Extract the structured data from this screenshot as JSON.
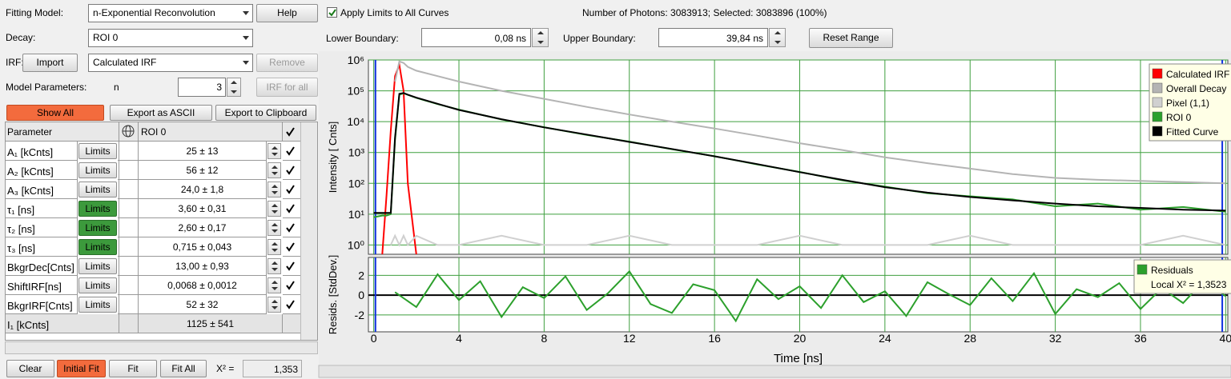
{
  "left_panel": {
    "fitting_model_label": "Fitting Model:",
    "fitting_model": "n-Exponential Reconvolution",
    "help": "Help",
    "decay_label": "Decay:",
    "decay": "ROI 0",
    "irf_label": "IRF:",
    "import": "Import",
    "irf": "Calculated IRF",
    "remove": "Remove",
    "model_params_label": "Model Parameters:",
    "n_label": "n",
    "n_value": "3",
    "irf_for_all": "IRF for all",
    "show_all": "Show All",
    "export_ascii": "Export as ASCII",
    "export_clipboard": "Export to Clipboard"
  },
  "table": {
    "header": [
      "Parameter",
      "ROI 0"
    ],
    "limits": "Limits",
    "rows": [
      {
        "name": "A₁ [kCnts]",
        "value": "25 ± 13",
        "limits_state": "off"
      },
      {
        "name": "A₂ [kCnts]",
        "value": "56 ± 12",
        "limits_state": "off"
      },
      {
        "name": "A₃ [kCnts]",
        "value": "24,0 ± 1,8",
        "limits_state": "off"
      },
      {
        "name": "τ₁ [ns]",
        "value": "3,60 ± 0,31",
        "limits_state": "on"
      },
      {
        "name": "τ₂ [ns]",
        "value": "2,60 ± 0,17",
        "limits_state": "on"
      },
      {
        "name": "τ₃ [ns]",
        "value": "0,715 ± 0,043",
        "limits_state": "on"
      },
      {
        "name": "BkgrDec[Cnts]",
        "value": "13,00 ± 0,93",
        "limits_state": "off"
      },
      {
        "name": "ShiftIRF[ns]",
        "value": "0,0068 ± 0,0012",
        "limits_state": "off"
      },
      {
        "name": "BkgrIRF[Cnts]",
        "value": "52 ± 32",
        "limits_state": "off"
      },
      {
        "name": "I₁ [kCnts]",
        "value": "1125 ± 541",
        "limits_state": "none"
      }
    ]
  },
  "bottom": {
    "clear": "Clear",
    "initial_fit": "Initial Fit",
    "fit": "Fit",
    "fit_all": "Fit All",
    "chi_label": "X² =",
    "chi_value": "1,353"
  },
  "top": {
    "apply_limits": "Apply Limits to All Curves",
    "photons": "Number of Photons: 3083913; Selected: 3083896 (100%)",
    "lower_label": "Lower Boundary:",
    "lower_value": "0,08 ns",
    "upper_label": "Upper Boundary:",
    "upper_value": "39,84 ns",
    "reset": "Reset Range"
  },
  "chart_data": [
    {
      "type": "line",
      "y_label": "Intensity [ Cnts]",
      "log_y": true,
      "ylim": [
        0.5,
        1000000
      ],
      "yticks": [
        {
          "value": 1,
          "label": "10⁰"
        },
        {
          "value": 10,
          "label": "10¹"
        },
        {
          "value": 100,
          "label": "10²"
        },
        {
          "value": 1000,
          "label": "10³"
        },
        {
          "value": 10000,
          "label": "10⁴"
        },
        {
          "value": 100000,
          "label": "10⁵"
        },
        {
          "value": 1000000,
          "label": "10⁶"
        }
      ],
      "xlim": [
        -0.25,
        40.1
      ],
      "xticks": [
        0,
        4,
        8,
        12,
        16,
        20,
        24,
        28,
        32,
        36,
        40
      ],
      "grid": true,
      "legend": "upper right",
      "boundaries": [
        0.08,
        39.84
      ],
      "x": [
        0,
        0.4,
        0.6,
        0.8,
        1,
        1.2,
        1.4,
        1.6,
        2,
        3,
        4,
        6,
        8,
        10,
        12,
        14,
        16,
        18,
        20,
        22,
        24,
        26,
        28,
        30,
        32,
        34,
        36,
        38,
        40
      ],
      "series": [
        {
          "name": "Calculated IRF",
          "color": "#ff0000",
          "values": [
            null,
            0.5,
            40,
            5000,
            300000,
            700000,
            100000,
            100,
            0.5,
            null,
            null,
            null,
            null,
            null,
            null,
            null,
            null,
            null,
            null,
            null,
            null,
            null,
            null,
            null,
            null,
            null,
            null,
            null,
            null
          ]
        },
        {
          "name": "Overall Decay",
          "color": "#b4b4b4",
          "values": [
            null,
            null,
            null,
            null,
            200000,
            900000,
            800000,
            600000,
            450000,
            300000,
            200000,
            100000,
            55000,
            30000,
            17000,
            10000,
            6000,
            3500,
            2000,
            1200,
            700,
            450,
            300,
            200,
            150,
            130,
            120,
            110,
            100
          ]
        },
        {
          "name": "Pixel (1,1)",
          "color": "#d0d0d0",
          "values": [
            null,
            null,
            null,
            1,
            2,
            1,
            2,
            1,
            2,
            1,
            1,
            2,
            1,
            1,
            2,
            1,
            1,
            1,
            2,
            1,
            1,
            1,
            2,
            1,
            1,
            1,
            1,
            2,
            1
          ]
        },
        {
          "name": "ROI 0",
          "color": "#2ca02c",
          "values": [
            8,
            9,
            9,
            10,
            2500,
            75000,
            83000,
            74000,
            59000,
            37000,
            24500,
            11800,
            6600,
            3700,
            2250,
            1280,
            760,
            410,
            235,
            125,
            78,
            48,
            38,
            30,
            18,
            22,
            14,
            17,
            12
          ]
        },
        {
          "name": "Fitted Curve",
          "color": "#000000",
          "values": [
            11,
            11,
            11,
            11,
            3000,
            80000,
            85000,
            75000,
            60000,
            38000,
            24000,
            12000,
            6500,
            3800,
            2200,
            1300,
            750,
            420,
            230,
            130,
            75,
            50,
            36,
            28,
            22,
            18,
            16,
            14,
            13
          ]
        }
      ]
    },
    {
      "type": "line",
      "y_label": "Resids. [StdDev.]",
      "x_label": "Time [ns]",
      "ylim": [
        -3.7,
        3.8
      ],
      "yticks": [
        -2,
        0,
        2
      ],
      "xlim": [
        -0.25,
        40.1
      ],
      "xticks": [
        0,
        4,
        8,
        12,
        16,
        20,
        24,
        28,
        32,
        36,
        40
      ],
      "grid": true,
      "legend": "upper right",
      "boundaries": [
        0.08,
        39.84
      ],
      "annotation": "Local X² = 1,3523",
      "x": [
        1,
        2,
        3,
        4,
        5,
        6,
        7,
        8,
        9,
        10,
        11,
        12,
        13,
        14,
        15,
        16,
        17,
        18,
        19,
        20,
        21,
        22,
        23,
        24,
        25,
        26,
        27,
        28,
        29,
        30,
        31,
        32,
        33,
        34,
        35,
        36,
        37,
        38,
        39,
        40
      ],
      "series": [
        {
          "name": "Residuals",
          "color": "#2ca02c",
          "values": [
            0.3,
            -1.2,
            2.1,
            -0.5,
            1.4,
            -2.2,
            0.8,
            -0.3,
            1.9,
            -1.5,
            0.2,
            2.4,
            -0.9,
            -1.8,
            1.1,
            0.5,
            -2.6,
            1.6,
            -0.4,
            0.9,
            -1.3,
            2.0,
            -0.7,
            0.4,
            -2.1,
            1.3,
            0.1,
            -1.0,
            1.7,
            -0.6,
            2.2,
            -1.9,
            0.6,
            -0.2,
            1.2,
            -1.4,
            0.7,
            -0.8,
            1.5,
            -0.1
          ]
        }
      ]
    }
  ]
}
